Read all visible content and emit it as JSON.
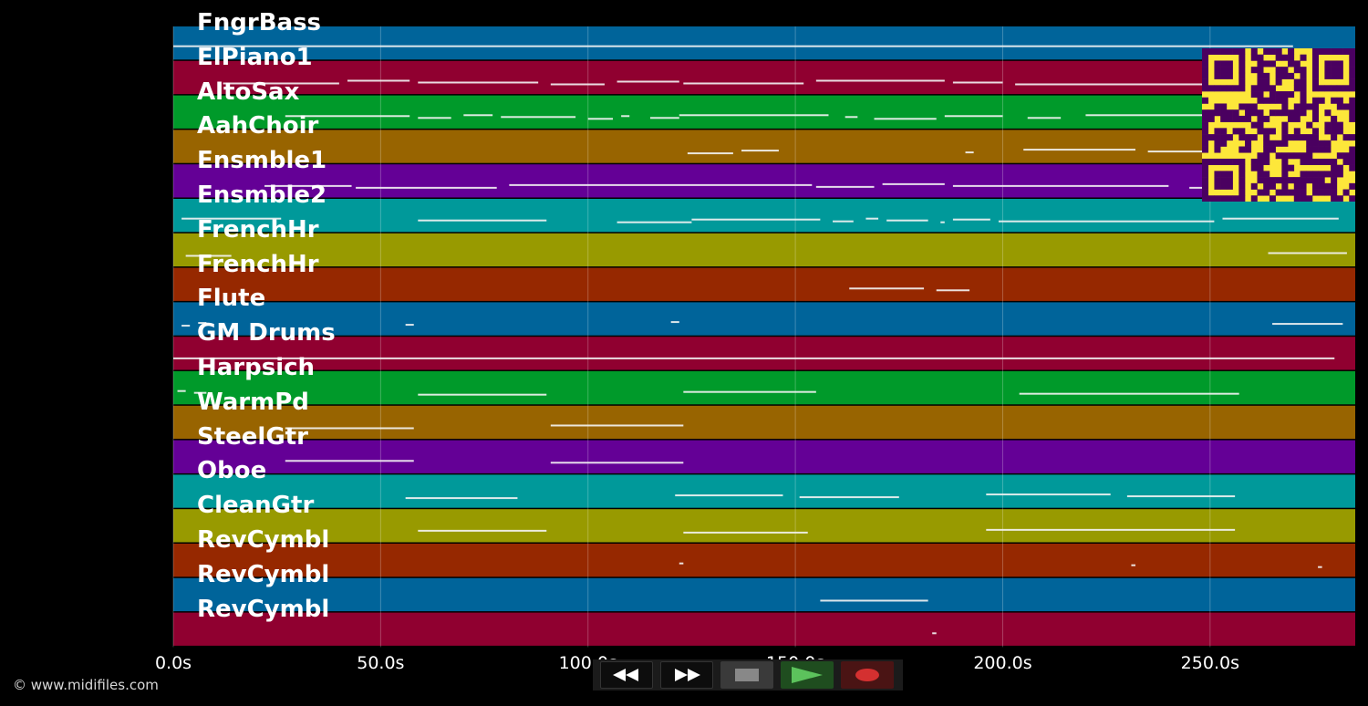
{
  "tracks": [
    {
      "name": "FngrBass",
      "color": "#00649a"
    },
    {
      "name": "ElPiano1",
      "color": "#900030"
    },
    {
      "name": "AltoSax",
      "color": "#009a2a"
    },
    {
      "name": "AahChoir",
      "color": "#986400"
    },
    {
      "name": "Ensmble1",
      "color": "#640096"
    },
    {
      "name": "Ensmble2",
      "color": "#00999a"
    },
    {
      "name": "FrenchHr",
      "color": "#989a00"
    },
    {
      "name": "FrenchHr",
      "color": "#962800"
    },
    {
      "name": "Flute",
      "color": "#00649a"
    },
    {
      "name": "GM Drums",
      "color": "#900030"
    },
    {
      "name": "Harpsich",
      "color": "#009a2a"
    },
    {
      "name": "WarmPd",
      "color": "#986400"
    },
    {
      "name": "SteelGtr",
      "color": "#640096"
    },
    {
      "name": "Oboe",
      "color": "#00999a"
    },
    {
      "name": "CleanGtr",
      "color": "#989a00"
    },
    {
      "name": "RevCymbl",
      "color": "#962800"
    },
    {
      "name": "RevCymbl",
      "color": "#00649a"
    },
    {
      "name": "RevCymbl",
      "color": "#900030"
    }
  ],
  "time_axis": {
    "ticks": [
      {
        "value": 0,
        "label": "0.0s"
      },
      {
        "value": 50,
        "label": "50.0s"
      },
      {
        "value": 100,
        "label": "100.0s"
      },
      {
        "value": 150,
        "label": "150.0s"
      },
      {
        "value": 200,
        "label": "200.0s"
      },
      {
        "value": 250,
        "label": "250.0s"
      }
    ],
    "xlim": [
      0,
      285
    ]
  },
  "notes": [
    [
      [
        0,
        270
      ]
    ],
    [
      [
        12,
        40
      ],
      [
        42,
        57
      ],
      [
        59,
        88
      ],
      [
        91,
        104
      ],
      [
        107,
        122
      ],
      [
        123,
        152
      ],
      [
        155,
        186
      ],
      [
        188,
        200
      ],
      [
        203,
        255
      ]
    ],
    [
      [
        27,
        57
      ],
      [
        59,
        67
      ],
      [
        70,
        77
      ],
      [
        79,
        97
      ],
      [
        100,
        106
      ],
      [
        108,
        110
      ],
      [
        115,
        122
      ],
      [
        122,
        158
      ],
      [
        162,
        165
      ],
      [
        169,
        184
      ],
      [
        186,
        200
      ],
      [
        206,
        214
      ],
      [
        220,
        258
      ]
    ],
    [
      [
        124,
        135
      ],
      [
        137,
        146
      ],
      [
        191,
        193
      ],
      [
        205,
        232
      ],
      [
        235,
        280
      ]
    ],
    [
      [
        22,
        43
      ],
      [
        44,
        78
      ],
      [
        81,
        154
      ],
      [
        155,
        169
      ],
      [
        171,
        186
      ],
      [
        188,
        240
      ],
      [
        245,
        270
      ]
    ],
    [
      [
        2,
        26
      ],
      [
        59,
        90
      ],
      [
        107,
        125
      ],
      [
        125,
        156
      ],
      [
        159,
        164
      ],
      [
        167,
        170
      ],
      [
        172,
        182
      ],
      [
        185,
        186
      ],
      [
        188,
        197
      ],
      [
        199,
        251
      ],
      [
        253,
        281
      ]
    ],
    [
      [
        3,
        14
      ],
      [
        264,
        283
      ]
    ],
    [
      [
        163,
        181
      ],
      [
        184,
        192
      ]
    ],
    [
      [
        2,
        4
      ],
      [
        6,
        8
      ],
      [
        56,
        58
      ],
      [
        120,
        122
      ],
      [
        265,
        282
      ]
    ],
    [
      [
        0,
        280
      ]
    ],
    [
      [
        1,
        3
      ],
      [
        5,
        8
      ],
      [
        59,
        90
      ],
      [
        123,
        155
      ],
      [
        204,
        257
      ]
    ],
    [
      [
        27,
        58
      ],
      [
        91,
        123
      ]
    ],
    [
      [
        27,
        58
      ],
      [
        91,
        123
      ]
    ],
    [
      [
        56,
        83
      ],
      [
        121,
        147
      ],
      [
        151,
        175
      ],
      [
        196,
        226
      ],
      [
        230,
        256
      ]
    ],
    [
      [
        59,
        90
      ],
      [
        123,
        153
      ],
      [
        196,
        256
      ]
    ],
    [
      [
        122,
        123
      ],
      [
        231,
        232
      ],
      [
        276,
        277
      ]
    ],
    [
      [
        156,
        182
      ]
    ],
    [
      [
        183,
        184
      ]
    ]
  ],
  "copyright": "© www.midifiles.com",
  "transport": {
    "rewind_icon": "rewind-icon",
    "fast_forward_icon": "fast-forward-icon",
    "stop_icon": "stop-icon",
    "play_icon": "play-icon",
    "record_icon": "record-icon",
    "stop_color": "#888888",
    "play_color": "#5cc25c",
    "record_color": "#d43030"
  },
  "qr_colors": {
    "fg": "#4a0060",
    "bg": "#fde73a"
  }
}
